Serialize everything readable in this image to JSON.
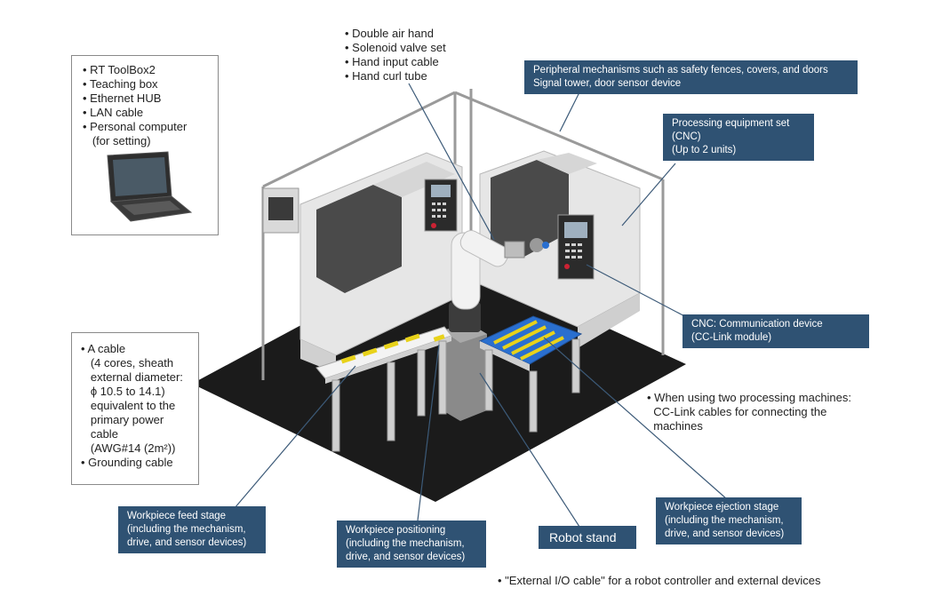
{
  "equipment_box": {
    "items": [
      "RT ToolBox2",
      "Teaching box",
      "Ethernet HUB",
      "LAN cable",
      "Personal computer",
      " (for setting)"
    ],
    "icon": "laptop-icon"
  },
  "cable_box": {
    "items": [
      "A cable",
      " (4 cores, sheath",
      " external diameter:",
      " ϕ 10.5 to 14.1)",
      " equivalent to the",
      " primary power",
      " cable",
      " (AWG#14 (2m²))",
      "Grounding cable"
    ]
  },
  "hand_notes": [
    "Double air hand",
    "Solenoid valve set",
    "Hand input cable",
    "Hand curl tube"
  ],
  "two_machines_note": [
    "When using two processing machines:",
    "CC-Link cables for connecting the",
    "machines"
  ],
  "external_io_note": "\"External I/O cable\" for a robot controller and external devices",
  "labels": {
    "peripheral": [
      "Peripheral mechanisms such as safety fences, covers, and doors",
      "Signal tower, door sensor device"
    ],
    "processing": [
      "Processing equipment set",
      "(CNC)",
      "(Up to 2 units)"
    ],
    "cnc_comm": [
      "CNC: Communication device",
      "(CC-Link module)"
    ],
    "feed_stage": [
      "Workpiece feed stage",
      "(including the mechanism,",
      "drive, and sensor devices)"
    ],
    "positioning": [
      "Workpiece positioning",
      "(including the mechanism,",
      "drive, and sensor devices)"
    ],
    "robot_stand": "Robot stand",
    "ejection_stage": [
      "Workpiece ejection stage",
      "(including the mechanism,",
      "drive, and sensor devices)"
    ]
  },
  "colors": {
    "label_bg": "#2f5273",
    "floor": "#1b1b1b",
    "machine_body": "#e3e3e3",
    "machine_dark": "#4a4a4a",
    "workpiece": "#e8d21a",
    "tray": "#2a6fcf",
    "leader_line": "#3c5a78"
  }
}
